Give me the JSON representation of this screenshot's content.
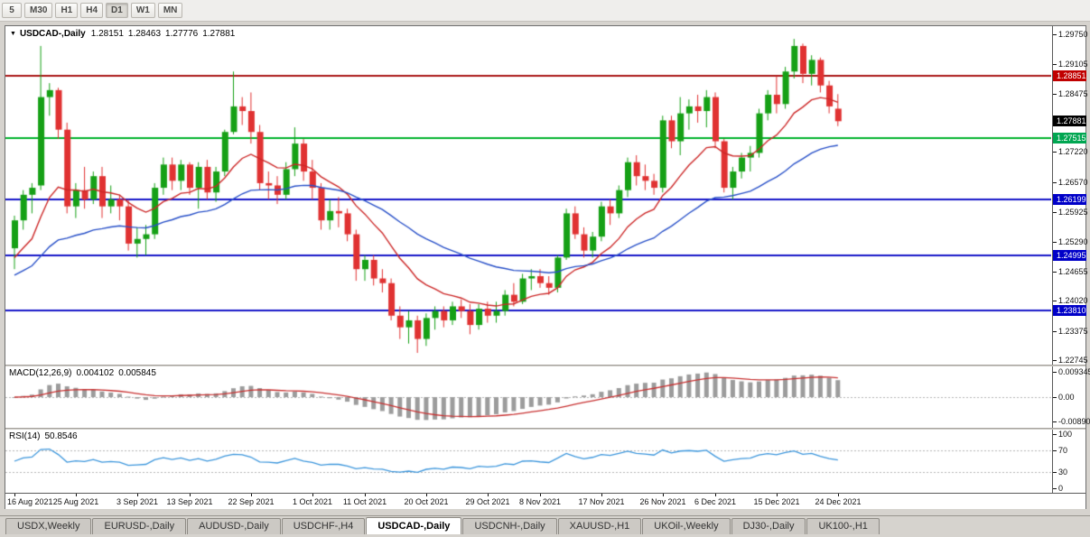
{
  "toolbar": {
    "period_buttons": [
      "5",
      "M30",
      "H1",
      "H4",
      "D1",
      "W1",
      "MN"
    ],
    "active_period": "D1"
  },
  "chart_header": {
    "symbol": "USDCAD-,Daily",
    "open": "1.28151",
    "high": "1.28463",
    "low": "1.27776",
    "close": "1.27881"
  },
  "indicators": {
    "macd": {
      "title": "MACD(12,26,9)",
      "main_value": "0.004102",
      "signal_value": "0.005845"
    },
    "rsi": {
      "title": "RSI(14)",
      "value": "50.8546"
    }
  },
  "tabs": [
    {
      "label": "USDX,Weekly",
      "active": false
    },
    {
      "label": "EURUSD-,Daily",
      "active": false
    },
    {
      "label": "AUDUSD-,Daily",
      "active": false
    },
    {
      "label": "USDCHF-,H4",
      "active": false
    },
    {
      "label": "USDCAD-,Daily",
      "active": true
    },
    {
      "label": "USDCNH-,Daily",
      "active": false
    },
    {
      "label": "XAUUSD-,H1",
      "active": false
    },
    {
      "label": "UKOil-,Weekly",
      "active": false
    },
    {
      "label": "DJ30-,Daily",
      "active": false
    },
    {
      "label": "UK100-,H1",
      "active": false
    }
  ],
  "chart_data": {
    "type": "candlestick",
    "title": "USDCAD-,Daily",
    "symbol": "USDCAD",
    "timeframe": "Daily",
    "price_axis": {
      "min": 1.22648,
      "max": 1.29925,
      "ticks": [
        1.2975,
        1.29105,
        1.28475,
        1.2722,
        1.2657,
        1.25925,
        1.2529,
        1.24655,
        1.2402,
        1.23375,
        1.22745
      ]
    },
    "badges": [
      {
        "value": 1.28851,
        "text": "1.28851",
        "bg": "#c00000",
        "current": false
      },
      {
        "value": 1.27881,
        "text": "1.27881",
        "bg": "#000000",
        "current": true
      },
      {
        "value": 1.27515,
        "text": "1.27515",
        "bg": "#00a651",
        "current": false
      },
      {
        "value": 1.26199,
        "text": "1.26199",
        "bg": "#0000c8",
        "current": false
      },
      {
        "value": 1.24995,
        "text": "1.24995",
        "bg": "#0000c8",
        "current": false
      },
      {
        "value": 1.2381,
        "text": "1.23810",
        "bg": "#0000c8",
        "current": false
      }
    ],
    "hlines": [
      {
        "value": 1.28851,
        "color": "#aa1616"
      },
      {
        "value": 1.27515,
        "color": "#00b22d"
      },
      {
        "value": 1.26199,
        "color": "#1616c8"
      },
      {
        "value": 1.24995,
        "color": "#1616c8"
      },
      {
        "value": 1.2381,
        "color": "#1616c8"
      }
    ],
    "colors": {
      "up": "#16a016",
      "down": "#e03232",
      "ma_fast": "#cc2828",
      "ma_slow": "#2850c8",
      "macd_bar": "#9c9c9c",
      "macd_signal": "#c83232",
      "rsi_line": "#3c96dc",
      "grid_dotted": "#b4b4b4"
    },
    "moving_averages": [
      {
        "period": 12,
        "seed": 1.248,
        "color_key": "ma_fast"
      },
      {
        "period": 34,
        "seed": 1.245,
        "color_key": "ma_slow"
      }
    ],
    "macd_panel": {
      "fast": 12,
      "slow": 26,
      "signal": 9,
      "scale_max": 0.0105,
      "axis_labels": [
        {
          "text": "0.009345",
          "value": 0.009345
        },
        {
          "text": "0.00",
          "value": 0
        },
        {
          "text": "-0.00890",
          "value": -0.0089
        }
      ]
    },
    "rsi_panel": {
      "period": 14,
      "axis_labels": [
        100,
        70,
        30,
        0
      ],
      "level_lines": [
        70,
        30
      ]
    },
    "date_labels": [
      {
        "index": 0,
        "text": "16 Aug 2021"
      },
      {
        "index": 7,
        "text": "25 Aug 2021"
      },
      {
        "index": 14,
        "text": "3 Sep 2021"
      },
      {
        "index": 20,
        "text": "13 Sep 2021"
      },
      {
        "index": 27,
        "text": "22 Sep 2021"
      },
      {
        "index": 34,
        "text": "1 Oct 2021"
      },
      {
        "index": 40,
        "text": "11 Oct 2021"
      },
      {
        "index": 47,
        "text": "20 Oct 2021"
      },
      {
        "index": 54,
        "text": "29 Oct 2021"
      },
      {
        "index": 60,
        "text": "8 Nov 2021"
      },
      {
        "index": 67,
        "text": "17 Nov 2021"
      },
      {
        "index": 74,
        "text": "26 Nov 2021"
      },
      {
        "index": 80,
        "text": "6 Dec 2021"
      },
      {
        "index": 87,
        "text": "15 Dec 2021"
      },
      {
        "index": 94,
        "text": "24 Dec 2021"
      }
    ],
    "candles": [
      [
        1.2515,
        1.2585,
        1.247,
        1.2575
      ],
      [
        1.2575,
        1.264,
        1.2555,
        1.263
      ],
      [
        1.263,
        1.2655,
        1.259,
        1.2645
      ],
      [
        1.265,
        1.295,
        1.264,
        1.284
      ],
      [
        1.284,
        1.287,
        1.28,
        1.2855
      ],
      [
        1.2855,
        1.286,
        1.275,
        1.277
      ],
      [
        1.277,
        1.2785,
        1.259,
        1.2605
      ],
      [
        1.2605,
        1.2655,
        1.258,
        1.264
      ],
      [
        1.264,
        1.269,
        1.26,
        1.262
      ],
      [
        1.262,
        1.268,
        1.261,
        1.267
      ],
      [
        1.267,
        1.269,
        1.258,
        1.2605
      ],
      [
        1.2605,
        1.265,
        1.259,
        1.262
      ],
      [
        1.262,
        1.263,
        1.2575,
        1.2605
      ],
      [
        1.2605,
        1.262,
        1.251,
        1.2525
      ],
      [
        1.2525,
        1.256,
        1.2495,
        1.2535
      ],
      [
        1.2535,
        1.2565,
        1.25,
        1.2545
      ],
      [
        1.2545,
        1.2655,
        1.2535,
        1.2645
      ],
      [
        1.2645,
        1.271,
        1.263,
        1.2695
      ],
      [
        1.2695,
        1.271,
        1.264,
        1.266
      ],
      [
        1.266,
        1.2705,
        1.264,
        1.2695
      ],
      [
        1.2695,
        1.27,
        1.263,
        1.2645
      ],
      [
        1.2645,
        1.27,
        1.26,
        1.269
      ],
      [
        1.269,
        1.2705,
        1.262,
        1.2635
      ],
      [
        1.2635,
        1.269,
        1.2615,
        1.268
      ],
      [
        1.268,
        1.277,
        1.267,
        1.2765
      ],
      [
        1.2765,
        1.2895,
        1.276,
        1.282
      ],
      [
        1.282,
        1.284,
        1.278,
        1.281
      ],
      [
        1.281,
        1.285,
        1.274,
        1.2765
      ],
      [
        1.2765,
        1.278,
        1.264,
        1.2655
      ],
      [
        1.2655,
        1.268,
        1.262,
        1.265
      ],
      [
        1.265,
        1.267,
        1.261,
        1.263
      ],
      [
        1.263,
        1.27,
        1.262,
        1.2685
      ],
      [
        1.2685,
        1.2775,
        1.267,
        1.274
      ],
      [
        1.274,
        1.275,
        1.266,
        1.268
      ],
      [
        1.268,
        1.2705,
        1.262,
        1.2645
      ],
      [
        1.2645,
        1.2655,
        1.2555,
        1.2575
      ],
      [
        1.2575,
        1.262,
        1.2555,
        1.2595
      ],
      [
        1.2595,
        1.2625,
        1.256,
        1.259
      ],
      [
        1.259,
        1.26,
        1.253,
        1.2545
      ],
      [
        1.2545,
        1.2555,
        1.2445,
        1.247
      ],
      [
        1.247,
        1.25,
        1.2445,
        1.249
      ],
      [
        1.249,
        1.25,
        1.2435,
        1.245
      ],
      [
        1.245,
        1.247,
        1.242,
        1.244
      ],
      [
        1.244,
        1.245,
        1.236,
        1.237
      ],
      [
        1.237,
        1.239,
        1.232,
        1.2345
      ],
      [
        1.2345,
        1.238,
        1.231,
        1.236
      ],
      [
        1.236,
        1.237,
        1.229,
        1.232
      ],
      [
        1.232,
        1.2375,
        1.2305,
        1.2365
      ],
      [
        1.2365,
        1.239,
        1.234,
        1.238
      ],
      [
        1.238,
        1.239,
        1.2345,
        1.236
      ],
      [
        1.236,
        1.24,
        1.235,
        1.239
      ],
      [
        1.239,
        1.2405,
        1.2365,
        1.238
      ],
      [
        1.238,
        1.2395,
        1.233,
        1.235
      ],
      [
        1.235,
        1.2395,
        1.234,
        1.2385
      ],
      [
        1.2385,
        1.24,
        1.2355,
        1.237
      ],
      [
        1.237,
        1.24,
        1.2355,
        1.238
      ],
      [
        1.238,
        1.2425,
        1.237,
        1.2415
      ],
      [
        1.2415,
        1.244,
        1.239,
        1.24
      ],
      [
        1.24,
        1.246,
        1.2395,
        1.245
      ],
      [
        1.245,
        1.247,
        1.2425,
        1.2455
      ],
      [
        1.2455,
        1.247,
        1.243,
        1.244
      ],
      [
        1.244,
        1.2455,
        1.2415,
        1.243
      ],
      [
        1.243,
        1.25,
        1.242,
        1.2495
      ],
      [
        1.2495,
        1.26,
        1.249,
        1.259
      ],
      [
        1.259,
        1.2605,
        1.2535,
        1.2545
      ],
      [
        1.2545,
        1.256,
        1.2495,
        1.251
      ],
      [
        1.251,
        1.255,
        1.2495,
        1.254
      ],
      [
        1.254,
        1.2615,
        1.253,
        1.2605
      ],
      [
        1.2605,
        1.262,
        1.2565,
        1.259
      ],
      [
        1.259,
        1.265,
        1.258,
        1.264
      ],
      [
        1.264,
        1.271,
        1.2625,
        1.27
      ],
      [
        1.27,
        1.2715,
        1.265,
        1.267
      ],
      [
        1.267,
        1.2695,
        1.264,
        1.266
      ],
      [
        1.266,
        1.2675,
        1.263,
        1.2645
      ],
      [
        1.2645,
        1.28,
        1.2635,
        1.279
      ],
      [
        1.279,
        1.28,
        1.273,
        1.2745
      ],
      [
        1.2745,
        1.284,
        1.2715,
        1.2805
      ],
      [
        1.2805,
        1.2835,
        1.277,
        1.282
      ],
      [
        1.282,
        1.2845,
        1.2785,
        1.281
      ],
      [
        1.281,
        1.2855,
        1.2775,
        1.284
      ],
      [
        1.284,
        1.285,
        1.273,
        1.2745
      ],
      [
        1.2745,
        1.275,
        1.2635,
        1.2645
      ],
      [
        1.2645,
        1.269,
        1.262,
        1.268
      ],
      [
        1.268,
        1.272,
        1.2665,
        1.271
      ],
      [
        1.271,
        1.2735,
        1.268,
        1.272
      ],
      [
        1.272,
        1.2815,
        1.271,
        1.2805
      ],
      [
        1.2805,
        1.2855,
        1.279,
        1.2845
      ],
      [
        1.2845,
        1.2885,
        1.2805,
        1.2825
      ],
      [
        1.2825,
        1.2905,
        1.2815,
        1.2895
      ],
      [
        1.2895,
        1.2965,
        1.288,
        1.295
      ],
      [
        1.295,
        1.2955,
        1.287,
        1.289
      ],
      [
        1.289,
        1.293,
        1.2865,
        1.292
      ],
      [
        1.292,
        1.2925,
        1.285,
        1.2865
      ],
      [
        1.2865,
        1.2875,
        1.2805,
        1.282
      ],
      [
        1.28151,
        1.28463,
        1.27776,
        1.27881
      ]
    ]
  }
}
